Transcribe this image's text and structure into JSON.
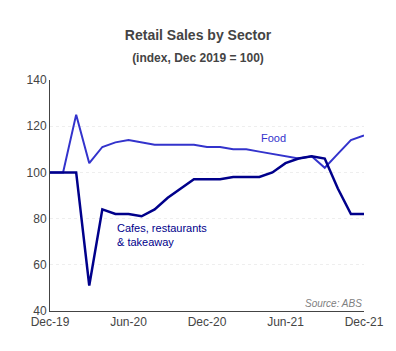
{
  "chart_data": {
    "type": "line",
    "title": "Retail Sales by Sector",
    "subtitle": "(index, Dec 2019 = 100)",
    "annotations": [
      "Source: ABS"
    ],
    "categories": [
      "Dec-19",
      null,
      null,
      null,
      null,
      null,
      "Jun-20",
      null,
      null,
      null,
      null,
      null,
      "Dec-20",
      null,
      null,
      null,
      null,
      null,
      "Jun-21",
      null,
      null,
      null,
      null,
      null,
      "Dec-21"
    ],
    "series": [
      {
        "name": "Food",
        "color": "#3333CC",
        "values": [
          100,
          100,
          125,
          104,
          111,
          113,
          114,
          113,
          112,
          112,
          112,
          112,
          111,
          111,
          110,
          110,
          109,
          108,
          107,
          106,
          107,
          102,
          108,
          114,
          116
        ]
      },
      {
        "name": "Cafes, restaurants\n& takeaway",
        "color": "#00008B",
        "values": [
          100,
          100,
          100,
          51,
          84,
          82,
          82,
          81,
          84,
          89,
          93,
          97,
          97,
          97,
          98,
          98,
          98,
          100,
          104,
          106,
          107,
          106,
          93,
          82,
          82
        ]
      }
    ],
    "ylim": [
      40,
      140
    ],
    "yticks": [
      40,
      60,
      80,
      100,
      120,
      140
    ],
    "grid": true
  }
}
